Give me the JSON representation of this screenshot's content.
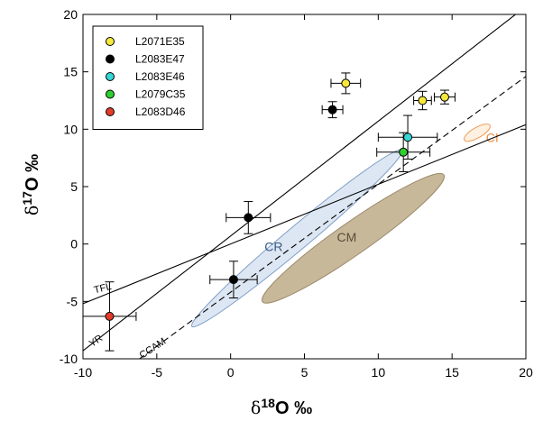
{
  "chart_data": {
    "type": "scatter",
    "xlim": [
      -10,
      20
    ],
    "ylim": [
      -10,
      20
    ],
    "x_ticks": [
      -10,
      -5,
      0,
      5,
      10,
      15,
      20
    ],
    "y_ticks": [
      -10,
      -5,
      0,
      5,
      10,
      15,
      20
    ],
    "x_tick_labels": [
      "-10",
      "-5",
      "0",
      "5",
      "10",
      "15",
      "20"
    ],
    "y_tick_labels": [
      "-10",
      "-5",
      "0",
      "5",
      "10",
      "15",
      "20"
    ],
    "xlabel": {
      "prefix": "δ",
      "sup": "18",
      "main": "O ‰"
    },
    "ylabel": {
      "prefix": "δ",
      "sup": "17",
      "main": "O ‰"
    },
    "grid": false,
    "legend_position": "top-left",
    "series": [
      {
        "name": "L2071E35",
        "color": "#f7e93a",
        "points": [
          {
            "x": 7.8,
            "y": 14.0,
            "xerr": 1.0,
            "yerr": 0.9
          },
          {
            "x": 13.0,
            "y": 12.5,
            "xerr": 0.6,
            "yerr": 0.8
          },
          {
            "x": 14.5,
            "y": 12.8,
            "xerr": 0.7,
            "yerr": 0.6
          }
        ]
      },
      {
        "name": "L2083E47",
        "color": "#000000",
        "points": [
          {
            "x": 6.9,
            "y": 11.7,
            "xerr": 0.7,
            "yerr": 0.7
          },
          {
            "x": 1.2,
            "y": 2.3,
            "xerr": 1.5,
            "yerr": 1.4
          },
          {
            "x": 0.2,
            "y": -3.1,
            "xerr": 1.6,
            "yerr": 1.6
          }
        ]
      },
      {
        "name": "L2083E46",
        "color": "#34d6d6",
        "points": [
          {
            "x": 12.0,
            "y": 9.3,
            "xerr": 2.0,
            "yerr": 1.9
          }
        ]
      },
      {
        "name": "L2079C35",
        "color": "#2fce2f",
        "points": [
          {
            "x": 11.7,
            "y": 8.0,
            "xerr": 1.8,
            "yerr": 1.7
          }
        ]
      },
      {
        "name": "L2083D46",
        "color": "#e33a2a",
        "points": [
          {
            "x": -8.2,
            "y": -6.3,
            "xerr": 1.8,
            "yerr": 3.0
          }
        ]
      }
    ],
    "lines": [
      {
        "label": "TFL",
        "style": "solid",
        "slope": 0.52,
        "intercept": 0
      },
      {
        "label": "YR",
        "style": "solid",
        "slope": 1.0,
        "intercept": 0.7
      },
      {
        "label": "CCAM",
        "style": "dashed",
        "slope": 0.94,
        "intercept": -4.2
      }
    ],
    "regions": [
      {
        "label": "CR",
        "center": [
          4.5,
          0.5
        ],
        "semi_axes": [
          9.3,
          1.0
        ],
        "angle_deg": 40,
        "fill": "#dde7f3",
        "stroke": "#7f9fc8",
        "label_color": "#3a5a86",
        "label_at": [
          2.3,
          -0.6
        ]
      },
      {
        "label": "CM",
        "center": [
          8.3,
          0.5
        ],
        "semi_axes": [
          7.5,
          1.4
        ],
        "angle_deg": 35,
        "fill": "#c7b89a",
        "stroke": "#9c8b6c",
        "label_color": "#5a4d36",
        "label_at": [
          7.2,
          0.2
        ]
      },
      {
        "label": "CI",
        "center": [
          16.7,
          9.7
        ],
        "semi_axes": [
          1.0,
          0.45
        ],
        "angle_deg": 30,
        "fill": "#fff1e2",
        "stroke": "#ef9a55",
        "label_color": "#ef8a3c",
        "label_at": [
          17.3,
          8.9
        ]
      }
    ]
  }
}
